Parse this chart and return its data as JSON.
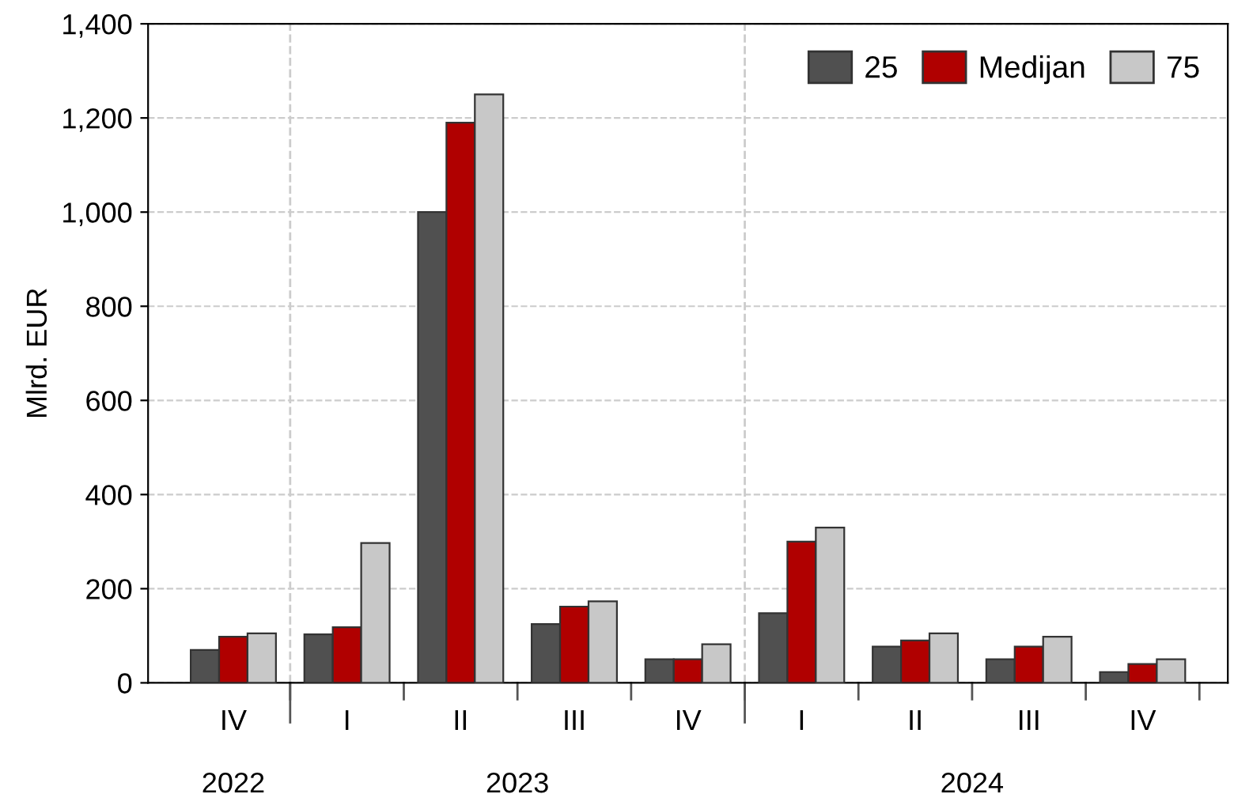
{
  "chart_data": {
    "type": "bar",
    "ylabel": "Mlrd. EUR",
    "categories": [
      "IV",
      "I",
      "II",
      "III",
      "IV",
      "I",
      "II",
      "III",
      "IV"
    ],
    "series": [
      {
        "name": "25",
        "color": "#505050",
        "values": [
          70,
          103,
          1000,
          125,
          50,
          148,
          77,
          50,
          23
        ]
      },
      {
        "name": "Medijan",
        "color": "#b00000",
        "values": [
          98,
          118,
          1190,
          162,
          50,
          300,
          90,
          77,
          40
        ]
      },
      {
        "name": "75",
        "color": "#c8c8c8",
        "values": [
          105,
          297,
          1250,
          173,
          82,
          330,
          105,
          98,
          50
        ]
      }
    ],
    "annotations": [
      "2022",
      "2023",
      "2024"
    ],
    "ylim": [
      0,
      1400
    ],
    "yticks": [
      0,
      {
        "value": 200,
        "label": "200"
      },
      {
        "value": 400,
        "label": "400"
      },
      {
        "value": 600,
        "label": "600"
      },
      {
        "value": 800,
        "label": "800"
      },
      {
        "value": 1000,
        "label": "1,000"
      },
      {
        "value": 1200,
        "label": "1,200"
      },
      {
        "value": 1400,
        "label": "1,400"
      }
    ],
    "grid": "y",
    "legend": "top right"
  }
}
